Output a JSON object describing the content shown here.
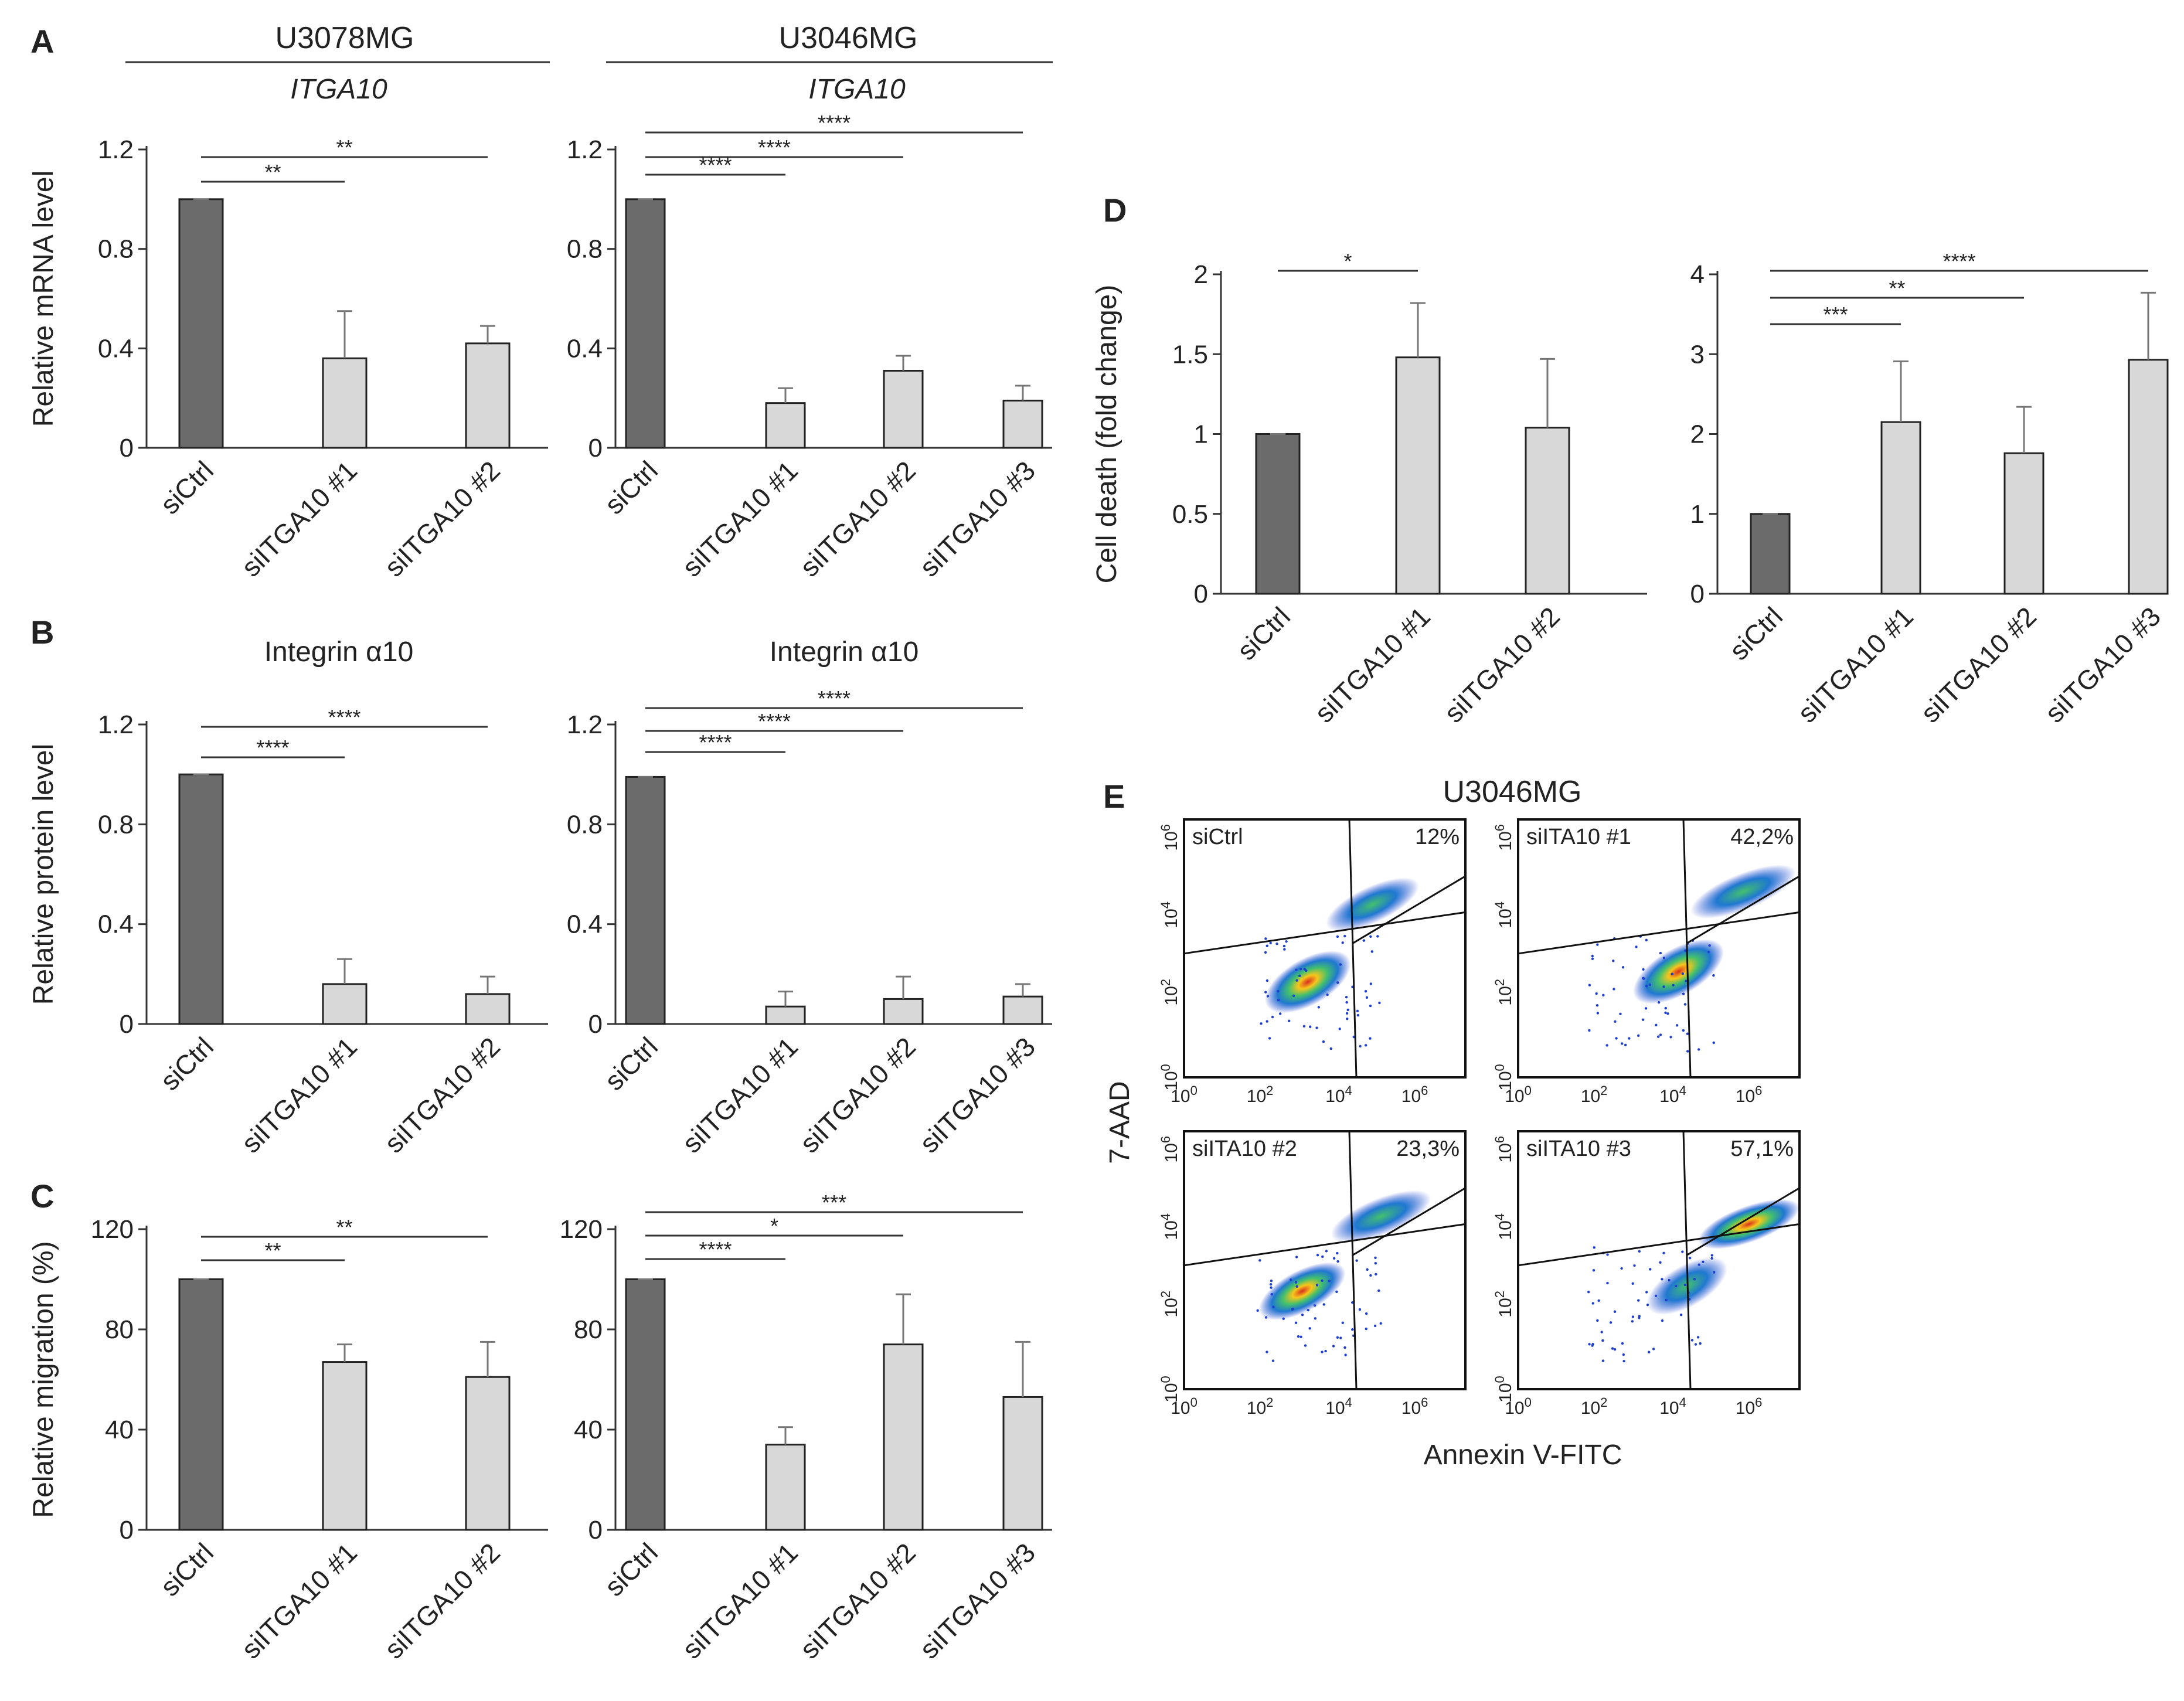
{
  "panel_labels": {
    "A": "A",
    "B": "B",
    "C": "C",
    "D": "D",
    "E": "E"
  },
  "headers": {
    "cell_line_1": "U3078MG",
    "cell_line_2": "U3046MG",
    "gene_1": "ITGA10",
    "gene_2": "ITGA10",
    "protein_1": "Integrin α10",
    "protein_2": "Integrin α10",
    "flow_title": "U3046MG"
  },
  "colors": {
    "ctrl": "#6b6b6b",
    "si": "#d8d8d8"
  },
  "chart_data": [
    {
      "id": "A1",
      "type": "bar",
      "ylabel": "Relative mRNA level",
      "ylim": [
        0,
        1.2
      ],
      "yticks": [
        "0",
        "0.4",
        "0.8",
        "1.2"
      ],
      "ytick_values": [
        0,
        0.4,
        0.8,
        1.2
      ],
      "categories": [
        "siCtrl",
        "siITGA10 #1",
        "siITGA10 #2"
      ],
      "values": [
        1.0,
        0.36,
        0.42
      ],
      "errors": [
        0.0,
        0.19,
        0.07
      ],
      "significance": [
        {
          "from": 0,
          "to": 1,
          "label": "**"
        },
        {
          "from": 0,
          "to": 2,
          "label": "**"
        }
      ]
    },
    {
      "id": "A2",
      "type": "bar",
      "ylabel": "",
      "ylim": [
        0,
        1.2
      ],
      "yticks": [
        "0",
        "0.4",
        "0.8",
        "1.2"
      ],
      "ytick_values": [
        0,
        0.4,
        0.8,
        1.2
      ],
      "categories": [
        "siCtrl",
        "siITGA10 #1",
        "siITGA10 #2",
        "siITGA10 #3"
      ],
      "values": [
        1.0,
        0.18,
        0.31,
        0.19
      ],
      "errors": [
        0.0,
        0.06,
        0.06,
        0.06
      ],
      "significance": [
        {
          "from": 0,
          "to": 1,
          "label": "****"
        },
        {
          "from": 0,
          "to": 2,
          "label": "****"
        },
        {
          "from": 0,
          "to": 3,
          "label": "****"
        }
      ]
    },
    {
      "id": "B1",
      "type": "bar",
      "ylabel": "Relative protein level",
      "ylim": [
        0,
        1.2
      ],
      "yticks": [
        "0",
        "0.4",
        "0.8",
        "1.2"
      ],
      "ytick_values": [
        0,
        0.4,
        0.8,
        1.2
      ],
      "categories": [
        "siCtrl",
        "siITGA10 #1",
        "siITGA10 #2"
      ],
      "values": [
        1.0,
        0.16,
        0.12
      ],
      "errors": [
        0.0,
        0.1,
        0.07
      ],
      "significance": [
        {
          "from": 0,
          "to": 1,
          "label": "****"
        },
        {
          "from": 0,
          "to": 2,
          "label": "****"
        }
      ]
    },
    {
      "id": "B2",
      "type": "bar",
      "ylabel": "",
      "ylim": [
        0,
        1.2
      ],
      "yticks": [
        "0",
        "0.4",
        "0.8",
        "1.2"
      ],
      "ytick_values": [
        0,
        0.4,
        0.8,
        1.2
      ],
      "categories": [
        "siCtrl",
        "siITGA10 #1",
        "siITGA10 #2",
        "siITGA10 #3"
      ],
      "values": [
        0.99,
        0.07,
        0.1,
        0.11
      ],
      "errors": [
        0.0,
        0.06,
        0.09,
        0.05
      ],
      "significance": [
        {
          "from": 0,
          "to": 1,
          "label": "****"
        },
        {
          "from": 0,
          "to": 2,
          "label": "****"
        },
        {
          "from": 0,
          "to": 3,
          "label": "****"
        }
      ]
    },
    {
      "id": "C1",
      "type": "bar",
      "ylabel": "Relative migration (%)",
      "ylim": [
        0,
        120
      ],
      "yticks": [
        "0",
        "40",
        "80",
        "120"
      ],
      "ytick_values": [
        0,
        40,
        80,
        120
      ],
      "categories": [
        "siCtrl",
        "siITGA10 #1",
        "siITGA10 #2"
      ],
      "values": [
        100,
        67,
        61
      ],
      "errors": [
        0,
        7,
        14
      ],
      "significance": [
        {
          "from": 0,
          "to": 1,
          "label": "**"
        },
        {
          "from": 0,
          "to": 2,
          "label": "**"
        }
      ]
    },
    {
      "id": "C2",
      "type": "bar",
      "ylabel": "",
      "ylim": [
        0,
        120
      ],
      "yticks": [
        "0",
        "40",
        "80",
        "120"
      ],
      "ytick_values": [
        0,
        40,
        80,
        120
      ],
      "categories": [
        "siCtrl",
        "siITGA10 #1",
        "siITGA10 #2",
        "siITGA10 #3"
      ],
      "values": [
        100,
        34,
        74,
        53
      ],
      "errors": [
        0,
        7,
        20,
        22
      ],
      "significance": [
        {
          "from": 0,
          "to": 1,
          "label": "****"
        },
        {
          "from": 0,
          "to": 2,
          "label": "*"
        },
        {
          "from": 0,
          "to": 3,
          "label": "***"
        }
      ]
    },
    {
      "id": "D1",
      "type": "bar",
      "ylabel": "Cell death (fold change)",
      "ylim": [
        0,
        2
      ],
      "yticks": [
        "0",
        "0.5",
        "1",
        "1.5",
        "2"
      ],
      "ytick_values": [
        0,
        0.5,
        1,
        1.5,
        2
      ],
      "categories": [
        "siCtrl",
        "siITGA10 #1",
        "siITGA10 #2"
      ],
      "values": [
        1.0,
        1.48,
        1.04
      ],
      "errors": [
        0.0,
        0.34,
        0.43
      ],
      "significance": [
        {
          "from": 0,
          "to": 1,
          "label": "*"
        }
      ]
    },
    {
      "id": "D2",
      "type": "bar",
      "ylabel": "",
      "ylim": [
        0,
        4
      ],
      "yticks": [
        "0",
        "1",
        "2",
        "3",
        "4"
      ],
      "ytick_values": [
        0,
        1,
        2,
        3,
        4
      ],
      "categories": [
        "siCtrl",
        "siITGA10 #1",
        "siITGA10 #2",
        "siITGA10 #3"
      ],
      "values": [
        1.0,
        2.15,
        1.76,
        2.93
      ],
      "errors": [
        0.0,
        0.76,
        0.58,
        0.84
      ],
      "significance": [
        {
          "from": 0,
          "to": 1,
          "label": "***"
        },
        {
          "from": 0,
          "to": 2,
          "label": "**"
        },
        {
          "from": 0,
          "to": 3,
          "label": "****"
        }
      ]
    },
    {
      "id": "E",
      "type": "scatter",
      "title": "U3046MG",
      "xlabel": "Annexin V-FITC",
      "ylabel": "7-AAD",
      "axis_ticks": [
        "10",
        "10",
        "10",
        "10"
      ],
      "tick_exponents": [
        "0",
        "2",
        "4",
        "6"
      ],
      "plots": [
        {
          "label": "siCtrl",
          "percent": "12%"
        },
        {
          "label": "siITA10 #1",
          "percent": "42,2%"
        },
        {
          "label": "siITA10 #2",
          "percent": "23,3%"
        },
        {
          "label": "siITA10 #3",
          "percent": "57,1%"
        }
      ]
    }
  ]
}
